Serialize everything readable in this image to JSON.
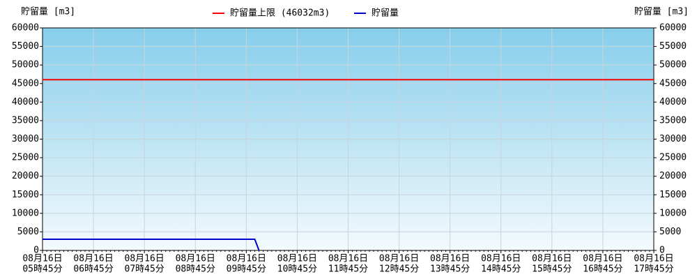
{
  "chart_data": {
    "type": "line",
    "y_label": "貯留量 [m3]",
    "y2_label": "貯留量 [m3]",
    "limit": {
      "name": "貯留量上限 (46032m3)",
      "value": 46032,
      "color": "#ff0000"
    },
    "categories": [
      [
        "08月16日",
        "05時45分"
      ],
      null,
      null,
      null,
      null,
      null,
      null,
      null,
      null,
      null,
      null,
      null,
      [
        "08月16日",
        "06時45分"
      ],
      null,
      null,
      null,
      null,
      null,
      null,
      null,
      null,
      null,
      null,
      null,
      [
        "08月16日",
        "07時45分"
      ],
      null,
      null,
      null,
      null,
      null,
      null,
      null,
      null,
      null,
      null,
      null,
      [
        "08月16日",
        "08時45分"
      ],
      null,
      null,
      null,
      null,
      null,
      null,
      null,
      null,
      null,
      null,
      null,
      [
        "08月16日",
        "09時45分"
      ],
      null,
      null,
      null,
      null,
      null,
      null,
      null,
      null,
      null,
      null,
      null,
      [
        "08月16日",
        "10時45分"
      ],
      null,
      null,
      null,
      null,
      null,
      null,
      null,
      null,
      null,
      null,
      null,
      [
        "08月16日",
        "11時45分"
      ],
      null,
      null,
      null,
      null,
      null,
      null,
      null,
      null,
      null,
      null,
      null,
      [
        "08月16日",
        "12時45分"
      ],
      null,
      null,
      null,
      null,
      null,
      null,
      null,
      null,
      null,
      null,
      null,
      [
        "08月16日",
        "13時45分"
      ],
      null,
      null,
      null,
      null,
      null,
      null,
      null,
      null,
      null,
      null,
      null,
      [
        "08月16日",
        "14時45分"
      ],
      null,
      null,
      null,
      null,
      null,
      null,
      null,
      null,
      null,
      null,
      null,
      [
        "08月16日",
        "15時45分"
      ],
      null,
      null,
      null,
      null,
      null,
      null,
      null,
      null,
      null,
      null,
      null,
      [
        "08月16日",
        "16時45分"
      ],
      null,
      null,
      null,
      null,
      null,
      null,
      null,
      null,
      null,
      null,
      null,
      [
        "08月16日",
        "17時45分"
      ]
    ],
    "series": [
      {
        "name": "貯留量",
        "color": "#0000cc",
        "values": [
          3000,
          3000,
          3000,
          3000,
          3000,
          3000,
          3000,
          3000,
          3000,
          3000,
          3000,
          3000,
          3000,
          3000,
          3000,
          3000,
          3000,
          3000,
          3000,
          3000,
          3000,
          3000,
          3000,
          3000,
          3000,
          3000,
          3000,
          3000,
          3000,
          3000,
          3000,
          3000,
          3000,
          3000,
          3000,
          3000,
          3000,
          3000,
          3000,
          3000,
          3000,
          3000,
          3000,
          3000,
          3000,
          3000,
          3000,
          3000,
          3000,
          3000,
          3000,
          0,
          null,
          null,
          null,
          null,
          null,
          null,
          null,
          null,
          null,
          null,
          null,
          null,
          null,
          null,
          null,
          null,
          null,
          null,
          null,
          null,
          null,
          null,
          null,
          null,
          null,
          null,
          null,
          null,
          null,
          null,
          null,
          null,
          null,
          null,
          null,
          null,
          null,
          null,
          null,
          null,
          null,
          null,
          null,
          null,
          null,
          null,
          null,
          null,
          null,
          null,
          null,
          null,
          null,
          null,
          null,
          null,
          null,
          null,
          null,
          null,
          null,
          null,
          null,
          null,
          null,
          null,
          null,
          null,
          null,
          null,
          null,
          null,
          null,
          null,
          null,
          null,
          null,
          null,
          null,
          null,
          null,
          null,
          null,
          null,
          null,
          null,
          null,
          null,
          null,
          null,
          null,
          null,
          null
        ]
      }
    ],
    "ylim": [
      0,
      60000
    ],
    "yticks": [
      0,
      5000,
      10000,
      15000,
      20000,
      25000,
      30000,
      35000,
      40000,
      45000,
      50000,
      55000,
      60000
    ],
    "y2lim": [
      0,
      60000
    ],
    "y2ticks": [
      0,
      5000,
      10000,
      15000,
      20000,
      25000,
      30000,
      35000,
      40000,
      45000,
      50000,
      55000,
      60000
    ],
    "grid": true
  }
}
